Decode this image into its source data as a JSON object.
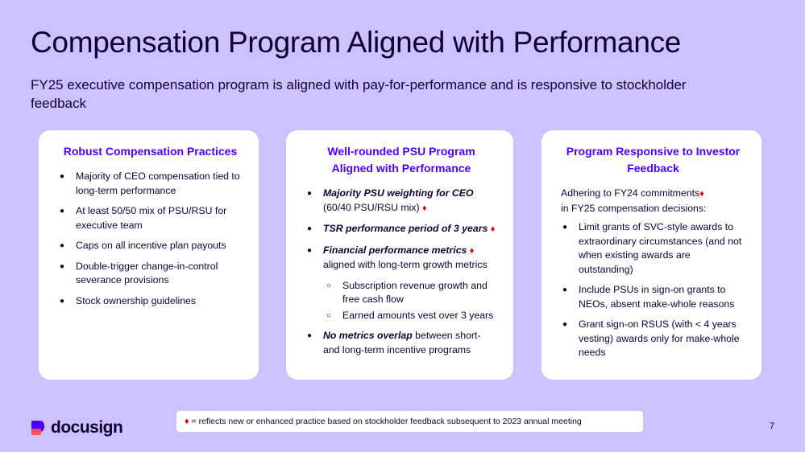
{
  "title": "Compensation Program Aligned with Performance",
  "subtitle": "FY25 executive compensation program is aligned with pay-for-performance and is responsive to stockholder feedback",
  "card1": {
    "heading": "Robust Compensation Practices",
    "items": [
      "Majority of CEO compensation tied to long-term performance",
      "At least 50/50 mix of PSU/RSU for executive team",
      "Caps on all incentive plan payouts",
      "Double-trigger change-in-control severance provisions",
      "Stock ownership guidelines"
    ]
  },
  "card2": {
    "heading": "Well-rounded PSU Program Aligned with Performance",
    "item1_bold": "Majority PSU weighting for CEO",
    "item1_rest": "(60/40 PSU/RSU mix)",
    "item2_bold": "TSR performance period of 3 years",
    "item3_bold": "Financial performance metrics",
    "item3_rest": "aligned with long-term growth metrics",
    "sub1": "Subscription revenue growth and free cash flow",
    "sub2": "Earned amounts vest over 3 years",
    "item4_bold": "No metrics overlap",
    "item4_rest": "between short- and long-term incentive programs"
  },
  "card3": {
    "heading": "Program Responsive to Investor Feedback",
    "intro_a": "Adhering to FY24 commitments",
    "intro_b": "in FY25 compensation decisions:",
    "items": [
      "Limit grants of SVC-style awards to extraordinary circumstances (and not when existing awards are outstanding)",
      "Include PSUs in sign-on grants to NEOs, absent make-whole reasons",
      "Grant sign-on RSUS (with < 4 years vesting) awards only for make-whole needs"
    ]
  },
  "diamond": "♦",
  "footnote": "= reflects new or enhanced practice based on stockholder feedback subsequent to 2023 annual meeting",
  "logo": "docusign",
  "page_number": "7",
  "colors": {
    "background": "#cbc2ff",
    "accent": "#4c00ff",
    "diamond": "#e00000",
    "text": "#130032"
  }
}
